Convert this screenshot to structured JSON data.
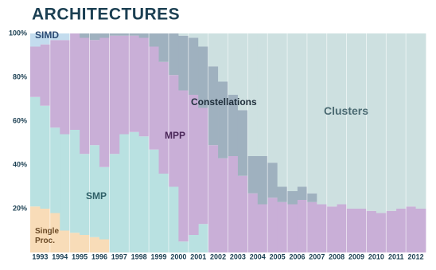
{
  "chart_data": {
    "type": "stacked-step-area",
    "title": "ARCHITECTURES",
    "categories": [
      "1993",
      null,
      "1994",
      null,
      "1995",
      null,
      "1996",
      null,
      "1997",
      null,
      "1998",
      null,
      "1999",
      null,
      "2000",
      null,
      "2001",
      null,
      "2002",
      null,
      "2003",
      null,
      "2004",
      null,
      "2005",
      null,
      "2006",
      null,
      "2007",
      null,
      "2008",
      null,
      "2009",
      null,
      "2010",
      null,
      "2011",
      null,
      "2012",
      null
    ],
    "ylim": [
      0,
      100
    ],
    "yticks": [
      {
        "value": 20,
        "label": "20%"
      },
      {
        "value": 40,
        "label": "40%"
      },
      {
        "value": 60,
        "label": "60%"
      },
      {
        "value": 80,
        "label": "80%"
      },
      {
        "value": 100,
        "label": "100%"
      }
    ],
    "series": [
      {
        "name": "Single Proc.",
        "color": "#f8dcb8",
        "values": [
          21,
          20,
          18,
          10,
          9,
          8,
          7,
          6,
          0,
          0,
          0,
          0,
          0,
          0,
          0,
          0,
          0,
          0,
          0,
          0,
          0,
          0,
          0,
          0,
          0,
          0,
          0,
          0,
          0,
          0,
          0,
          0,
          0,
          0,
          0,
          0,
          0,
          0,
          0,
          0
        ]
      },
      {
        "name": "SMP",
        "color": "#b9e1e1",
        "values": [
          50,
          47,
          39,
          44,
          47,
          37,
          42,
          33,
          45,
          54,
          55,
          53,
          47,
          36,
          30,
          5,
          8,
          13,
          0,
          0,
          0,
          0,
          0,
          0,
          0,
          0,
          0,
          0,
          0,
          0,
          0,
          0,
          0,
          0,
          0,
          0,
          0,
          0,
          0,
          0
        ]
      },
      {
        "name": "MPP",
        "color": "#c9afd7",
        "values": [
          23,
          28,
          40,
          43,
          44,
          53,
          48,
          59,
          54,
          45,
          44,
          45,
          47,
          51,
          51,
          69,
          64,
          53,
          49,
          43,
          44,
          35,
          27,
          22,
          25,
          23,
          22,
          24,
          23,
          22,
          21,
          22,
          20,
          20,
          19,
          18,
          19,
          20,
          21,
          20
        ]
      },
      {
        "name": "Constellations",
        "color": "#9fb1bf",
        "values": [
          0,
          0,
          0,
          0,
          0,
          2,
          3,
          2,
          1,
          1,
          1,
          2,
          6,
          13,
          19,
          25,
          26,
          28,
          36,
          35,
          28,
          30,
          17,
          22,
          16,
          7,
          6,
          6,
          4,
          0,
          0,
          0,
          0,
          0,
          0,
          0,
          0,
          0,
          0,
          0
        ]
      },
      {
        "name": "Clusters",
        "color": "#cde0e0",
        "values": [
          0,
          0,
          0,
          0,
          0,
          0,
          0,
          0,
          0,
          0,
          0,
          0,
          0,
          0,
          0,
          1,
          2,
          6,
          15,
          22,
          28,
          35,
          56,
          56,
          59,
          70,
          72,
          70,
          73,
          78,
          79,
          78,
          80,
          80,
          81,
          82,
          81,
          80,
          79,
          80
        ]
      },
      {
        "name": "SIMD",
        "color": "#c3dcee",
        "values": [
          6,
          5,
          3,
          3,
          0,
          0,
          0,
          0,
          0,
          0,
          0,
          0,
          0,
          0,
          0,
          0,
          0,
          0,
          0,
          0,
          0,
          0,
          0,
          0,
          0,
          0,
          0,
          0,
          0,
          0,
          0,
          0,
          0,
          0,
          0,
          0,
          0,
          0,
          0,
          0
        ]
      }
    ]
  }
}
